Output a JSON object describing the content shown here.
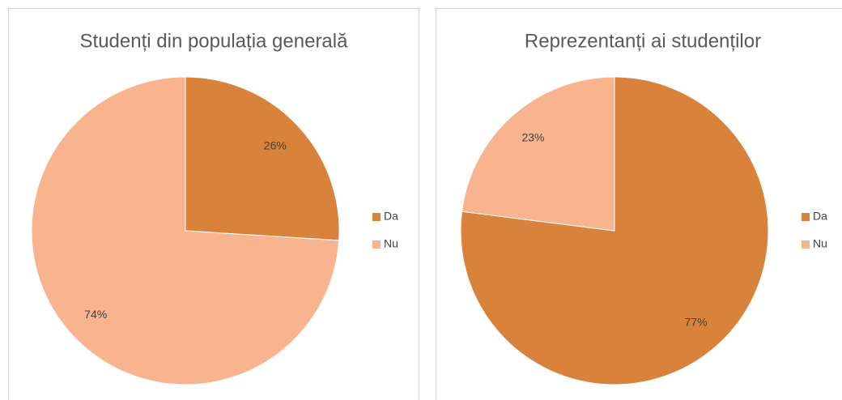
{
  "chart_data": [
    {
      "type": "pie",
      "title": "Studenți din populația generală",
      "categories": [
        "Da",
        "Nu"
      ],
      "values": [
        26,
        74
      ],
      "value_labels": [
        "26%",
        "74%"
      ],
      "colors": [
        "#d9823b",
        "#f8b48e"
      ],
      "legend": "right"
    },
    {
      "type": "pie",
      "title": "Reprezentanți ai studenților",
      "categories": [
        "Da",
        "Nu"
      ],
      "values": [
        77,
        23
      ],
      "value_labels": [
        "77%",
        "23%"
      ],
      "colors": [
        "#d9823b",
        "#f8b48e"
      ],
      "legend": "right"
    }
  ]
}
